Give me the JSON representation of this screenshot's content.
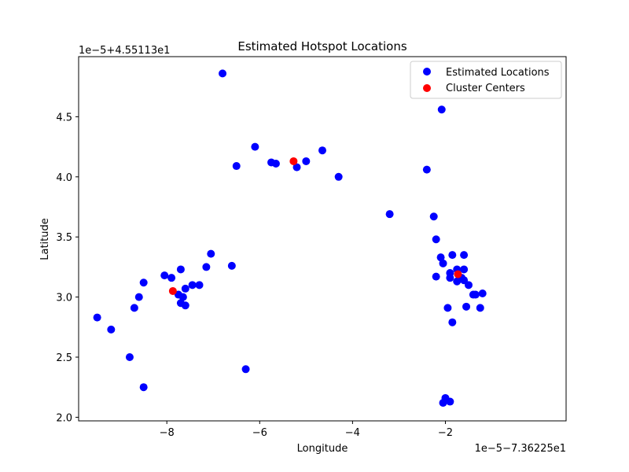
{
  "chart_data": {
    "type": "scatter",
    "title": "Estimated Hotspot Locations",
    "xlabel": "Longitude",
    "ylabel": "Latitude",
    "x_offset_label": "1e−5−7.36225e1",
    "y_offset_label": "1e−5+4.55113e1",
    "xlim": [
      -9.9,
      0.6
    ],
    "ylim": [
      1.97,
      5.0
    ],
    "xticks": [
      -8,
      -6,
      -4,
      -2
    ],
    "xtick_labels": [
      "−8",
      "−6",
      "−4",
      "−2"
    ],
    "yticks": [
      2.0,
      2.5,
      3.0,
      3.5,
      4.0,
      4.5
    ],
    "ytick_labels": [
      "2.0",
      "2.5",
      "3.0",
      "3.5",
      "4.0",
      "4.5"
    ],
    "grid": false,
    "legend_position": "top-right",
    "series": [
      {
        "name": "Estimated Locations",
        "color": "#0000ff",
        "points": [
          [
            -9.5,
            2.83
          ],
          [
            -9.2,
            2.73
          ],
          [
            -8.8,
            2.5
          ],
          [
            -8.7,
            2.91
          ],
          [
            -8.6,
            3.0
          ],
          [
            -8.5,
            3.12
          ],
          [
            -8.5,
            2.25
          ],
          [
            -8.05,
            3.18
          ],
          [
            -7.9,
            3.16
          ],
          [
            -7.7,
            3.23
          ],
          [
            -7.75,
            3.02
          ],
          [
            -7.65,
            3.0
          ],
          [
            -7.7,
            2.95
          ],
          [
            -7.6,
            2.93
          ],
          [
            -7.6,
            3.07
          ],
          [
            -7.45,
            3.1
          ],
          [
            -7.3,
            3.1
          ],
          [
            -7.15,
            3.25
          ],
          [
            -7.05,
            3.36
          ],
          [
            -6.8,
            4.86
          ],
          [
            -6.6,
            3.26
          ],
          [
            -6.5,
            4.09
          ],
          [
            -6.3,
            2.4
          ],
          [
            -6.1,
            4.25
          ],
          [
            -5.75,
            4.12
          ],
          [
            -5.65,
            4.11
          ],
          [
            -5.2,
            4.08
          ],
          [
            -5.0,
            4.13
          ],
          [
            -4.65,
            4.22
          ],
          [
            -4.3,
            4.0
          ],
          [
            -3.2,
            3.69
          ],
          [
            -2.4,
            4.06
          ],
          [
            -2.25,
            3.67
          ],
          [
            -2.2,
            3.48
          ],
          [
            -2.2,
            3.17
          ],
          [
            -2.1,
            3.33
          ],
          [
            -2.05,
            3.28
          ],
          [
            -2.05,
            2.12
          ],
          [
            -2.0,
            2.16
          ],
          [
            -1.95,
            2.91
          ],
          [
            -2.08,
            4.56
          ],
          [
            -1.9,
            3.16
          ],
          [
            -1.9,
            3.2
          ],
          [
            -1.85,
            3.35
          ],
          [
            -1.85,
            2.79
          ],
          [
            -1.75,
            3.23
          ],
          [
            -1.75,
            3.13
          ],
          [
            -1.65,
            3.16
          ],
          [
            -1.6,
            3.35
          ],
          [
            -1.6,
            3.23
          ],
          [
            -1.6,
            3.14
          ],
          [
            -1.55,
            2.92
          ],
          [
            -1.5,
            3.1
          ],
          [
            -1.4,
            3.02
          ],
          [
            -1.35,
            3.02
          ],
          [
            -1.25,
            2.91
          ],
          [
            -1.2,
            3.03
          ],
          [
            -1.9,
            2.13
          ]
        ]
      },
      {
        "name": "Cluster Centers",
        "color": "#ff0000",
        "points": [
          [
            -7.87,
            3.05
          ],
          [
            -5.27,
            4.13
          ],
          [
            -1.73,
            3.19
          ]
        ]
      }
    ]
  }
}
